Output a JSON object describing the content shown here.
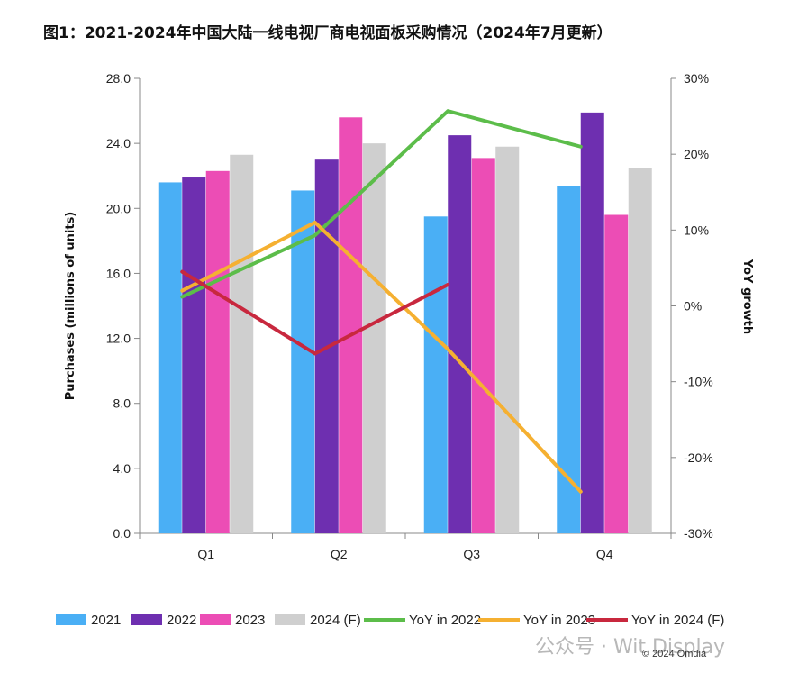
{
  "title": "图1：2021-2024年中国大陆一线电视厂商电视面板采购情况（2024年7月更新）",
  "watermark": "公众号 · Wit Display",
  "copyright": "© 2024 Omdia",
  "chart_data": {
    "type": "bar",
    "categories": [
      "Q1",
      "Q2",
      "Q3",
      "Q4"
    ],
    "ylabel": "Purchases (millions of units)",
    "ylim": [
      0,
      28
    ],
    "yticks": [
      "0.0",
      "4.0",
      "8.0",
      "12.0",
      "16.0",
      "20.0",
      "24.0",
      "28.0"
    ],
    "y2label": "YoY growth",
    "y2lim": [
      -30,
      30
    ],
    "y2ticks": [
      "-30%",
      "-20%",
      "-10%",
      "0%",
      "10%",
      "20%",
      "30%"
    ],
    "grid": false,
    "legend_position": "bottom",
    "series": [
      {
        "name": "2021",
        "type": "bar",
        "axis": "left",
        "color": "#4AAFF5",
        "values": [
          21.6,
          21.1,
          19.5,
          21.4
        ]
      },
      {
        "name": "2022",
        "type": "bar",
        "axis": "left",
        "color": "#6E2FB0",
        "values": [
          21.9,
          23.0,
          24.5,
          25.9
        ]
      },
      {
        "name": "2023",
        "type": "bar",
        "axis": "left",
        "color": "#EC4DB5",
        "values": [
          22.3,
          25.6,
          23.1,
          19.6
        ]
      },
      {
        "name": "2024 (F)",
        "type": "bar",
        "axis": "left",
        "color": "#CFCFCF",
        "values": [
          23.3,
          24.0,
          23.8,
          22.5
        ]
      },
      {
        "name": "YoY in 2022",
        "type": "line",
        "axis": "right",
        "color": "#5CBD4A",
        "values": [
          1.2,
          9.3,
          25.7,
          21.0
        ]
      },
      {
        "name": "YoY in 2023",
        "type": "line",
        "axis": "right",
        "color": "#F5B031",
        "values": [
          2.0,
          11.0,
          -5.7,
          -24.5
        ]
      },
      {
        "name": "YoY in 2024 (F)",
        "type": "line",
        "axis": "right",
        "color": "#C8283E",
        "values": [
          4.5,
          -6.3,
          2.8,
          null
        ]
      }
    ]
  }
}
